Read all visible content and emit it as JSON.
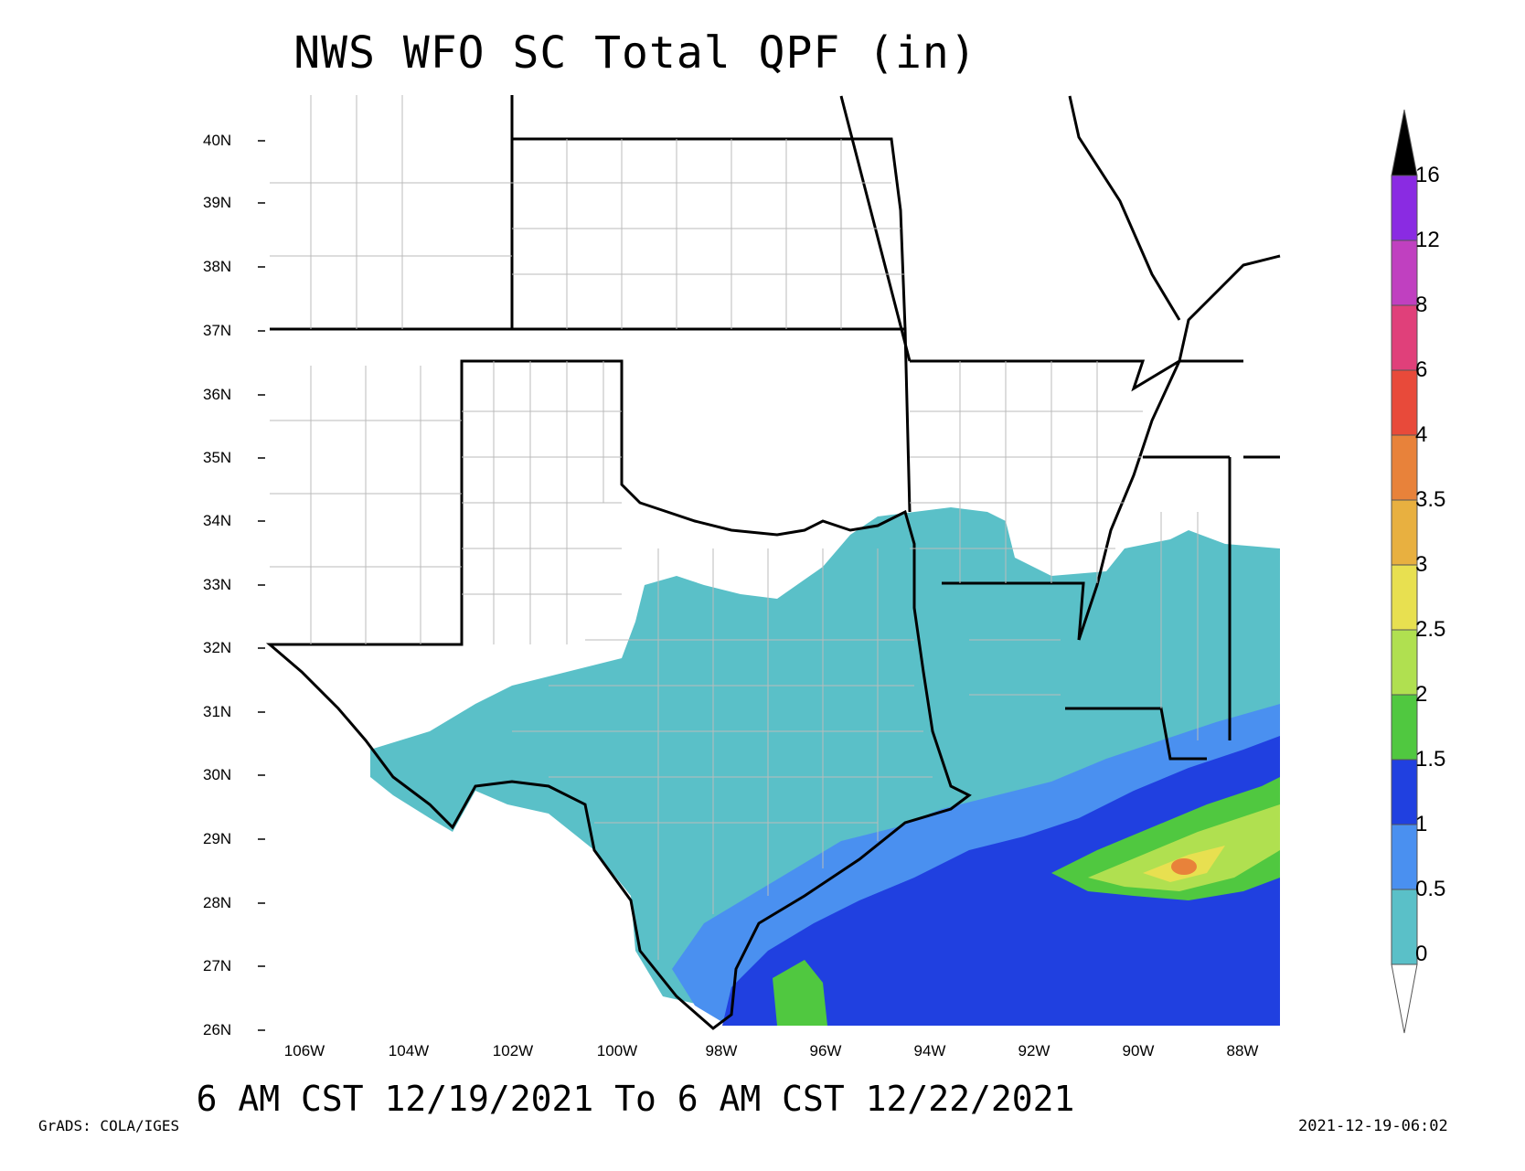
{
  "title": "NWS WFO SC Total QPF (in)",
  "valid_period": "6 AM CST 12/19/2021 To 6 AM CST 12/22/2021",
  "credit": "GrADS: COLA/IGES",
  "timestamp": "2021-12-19-06:02",
  "latitude_labels": [
    "40N",
    "39N",
    "38N",
    "37N",
    "36N",
    "35N",
    "34N",
    "33N",
    "32N",
    "31N",
    "30N",
    "29N",
    "28N",
    "27N",
    "26N"
  ],
  "longitude_labels": [
    "106W",
    "104W",
    "102W",
    "100W",
    "98W",
    "96W",
    "94W",
    "92W",
    "90W",
    "88W"
  ],
  "colorbar": {
    "labels": [
      "16",
      "12",
      "8",
      "6",
      "4",
      "3.5",
      "3",
      "2.5",
      "2",
      "1.5",
      "1",
      "0.5",
      "0"
    ],
    "colors": [
      "#8a2be2",
      "#c040c0",
      "#e0407a",
      "#e84a3a",
      "#e8823a",
      "#e8b040",
      "#e8e050",
      "#b0e050",
      "#50c840",
      "#2040e0",
      "#4a90f0",
      "#5ac0c8"
    ],
    "top_color": "#000000",
    "units": "in"
  },
  "map_colors": {
    "light": "#5ac0c8",
    "mid": "#4a90f0",
    "heavy": "#2040e0",
    "bright_green": "#50c840",
    "light_green": "#b0e050",
    "yellow": "#e8e050",
    "orange": "#e8823a"
  }
}
